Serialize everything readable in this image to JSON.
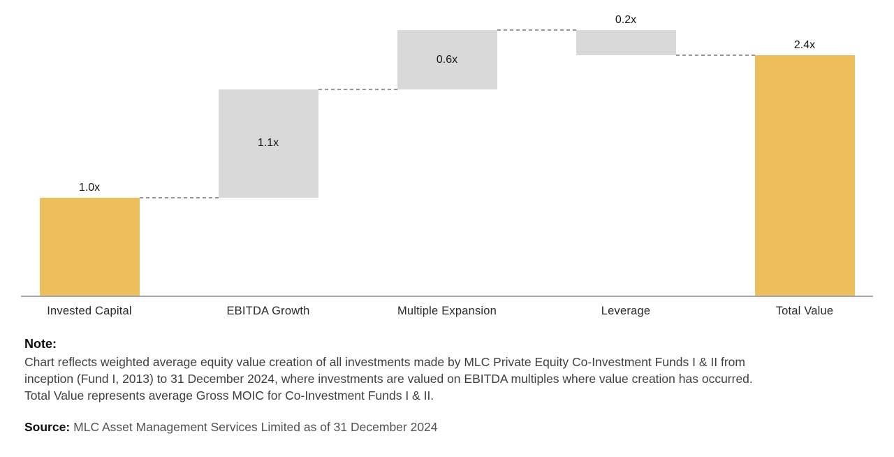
{
  "chart_data": {
    "type": "bar",
    "subtype": "waterfall",
    "title": "",
    "unit_suffix": "x",
    "grid": false,
    "legend": false,
    "ylim": [
      0,
      3.0
    ],
    "colors": {
      "primary": "#ECBE5C",
      "neutral": "#D9D9D9",
      "axis_line": "#A6A6A6",
      "connector": "#979797"
    },
    "categories": [
      "Invested Capital",
      "EBITDA Growth",
      "Multiple Expansion",
      "Leverage",
      "Total Value"
    ],
    "bars": [
      {
        "category": "Invested Capital",
        "label": "1.0x",
        "start": 0,
        "end": 1.0,
        "direction": "increase",
        "role": "primary",
        "label_position": "above"
      },
      {
        "category": "EBITDA Growth",
        "label": "1.1x",
        "start": 1.0,
        "end": 2.1,
        "direction": "increase",
        "role": "neutral",
        "label_position": "inside"
      },
      {
        "category": "Multiple Expansion",
        "label": "0.6x",
        "start": 2.1,
        "end": 2.7,
        "direction": "increase",
        "role": "neutral",
        "label_position": "inside"
      },
      {
        "category": "Leverage",
        "label": "0.2x",
        "start": 2.7,
        "end": 2.45,
        "direction": "decrease",
        "role": "neutral",
        "label_position": "above"
      },
      {
        "category": "Total Value",
        "label": "2.4x",
        "start": 0,
        "end": 2.45,
        "direction": "total",
        "role": "primary",
        "label_position": "above"
      }
    ]
  },
  "note": {
    "title": "Note:",
    "lines": [
      "Chart reflects weighted average equity value creation of all investments made by MLC Private Equity Co-Investment Funds I & II from",
      "inception (Fund I, 2013) to 31 December 2024, where investments are valued on EBITDA multiples where value creation has occurred.",
      "Total Value represents average Gross MOIC for Co-Investment Funds I & II."
    ]
  },
  "source": {
    "label": "Source:",
    "text": "MLC Asset Management Services Limited as of 31 December 2024"
  }
}
